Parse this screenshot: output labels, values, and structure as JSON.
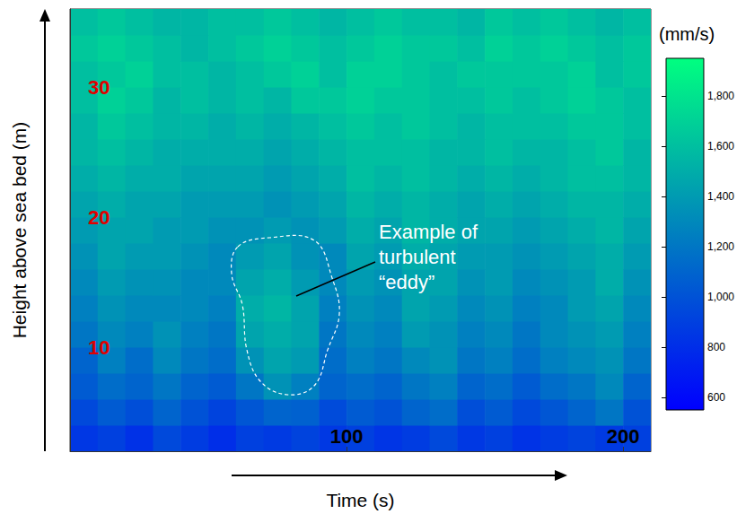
{
  "chart_data": {
    "type": "heatmap",
    "x_label": "Time (s)",
    "y_label": "Height above sea bed (m)",
    "xlim": [
      0,
      210
    ],
    "xticks": [
      100,
      200
    ],
    "ylim": [
      2,
      36
    ],
    "yticks": [
      10,
      20,
      30
    ],
    "x_bins": [
      0,
      10,
      20,
      30,
      40,
      50,
      60,
      70,
      80,
      90,
      100,
      110,
      120,
      130,
      140,
      150,
      160,
      170,
      180,
      190,
      200,
      210
    ],
    "y_bins": [
      2,
      4,
      6,
      8,
      10,
      12,
      14,
      16,
      18,
      20,
      22,
      24,
      26,
      28,
      30,
      32,
      34,
      36
    ],
    "cells": [
      [
        850,
        900,
        820,
        950,
        880,
        800,
        900,
        870,
        920,
        860,
        900,
        840,
        880,
        950,
        860,
        900,
        830,
        880,
        920,
        870,
        900
      ],
      [
        950,
        1050,
        980,
        1100,
        1000,
        920,
        1020,
        1100,
        1080,
        960,
        1050,
        1000,
        1100,
        1150,
        980,
        1050,
        950,
        1020,
        1100,
        1200,
        1000
      ],
      [
        1050,
        1150,
        1100,
        1200,
        1100,
        1050,
        1200,
        1350,
        1250,
        1100,
        1150,
        1100,
        1200,
        1250,
        1100,
        1150,
        1050,
        1150,
        1200,
        1300,
        1100
      ],
      [
        1100,
        1250,
        1150,
        1300,
        1200,
        1150,
        1350,
        1450,
        1400,
        1150,
        1250,
        1200,
        1300,
        1350,
        1200,
        1250,
        1150,
        1250,
        1300,
        1350,
        1200
      ],
      [
        1200,
        1300,
        1250,
        1350,
        1250,
        1200,
        1450,
        1500,
        1450,
        1200,
        1300,
        1250,
        1400,
        1350,
        1250,
        1300,
        1200,
        1300,
        1350,
        1400,
        1250
      ],
      [
        1250,
        1350,
        1300,
        1300,
        1300,
        1250,
        1500,
        1550,
        1450,
        1250,
        1350,
        1300,
        1450,
        1400,
        1300,
        1350,
        1250,
        1300,
        1400,
        1450,
        1300
      ],
      [
        1300,
        1400,
        1350,
        1350,
        1300,
        1300,
        1450,
        1500,
        1400,
        1300,
        1400,
        1350,
        1450,
        1450,
        1350,
        1400,
        1300,
        1350,
        1400,
        1500,
        1350
      ],
      [
        1350,
        1450,
        1400,
        1400,
        1350,
        1300,
        1400,
        1450,
        1350,
        1300,
        1450,
        1400,
        1500,
        1450,
        1400,
        1400,
        1350,
        1400,
        1450,
        1500,
        1400
      ],
      [
        1400,
        1450,
        1450,
        1400,
        1400,
        1350,
        1350,
        1400,
        1350,
        1400,
        1500,
        1450,
        1550,
        1500,
        1450,
        1450,
        1400,
        1450,
        1500,
        1550,
        1450
      ],
      [
        1450,
        1500,
        1450,
        1450,
        1400,
        1400,
        1400,
        1350,
        1400,
        1450,
        1550,
        1500,
        1550,
        1500,
        1450,
        1500,
        1450,
        1500,
        1550,
        1550,
        1500
      ],
      [
        1500,
        1550,
        1500,
        1500,
        1450,
        1450,
        1450,
        1400,
        1450,
        1500,
        1600,
        1550,
        1600,
        1550,
        1500,
        1550,
        1500,
        1550,
        1600,
        1600,
        1550
      ],
      [
        1550,
        1600,
        1550,
        1500,
        1500,
        1500,
        1500,
        1450,
        1500,
        1550,
        1600,
        1600,
        1600,
        1550,
        1550,
        1600,
        1550,
        1550,
        1600,
        1650,
        1550
      ],
      [
        1550,
        1650,
        1600,
        1550,
        1550,
        1500,
        1550,
        1500,
        1550,
        1600,
        1650,
        1600,
        1650,
        1600,
        1550,
        1600,
        1600,
        1600,
        1650,
        1650,
        1600
      ],
      [
        1600,
        1700,
        1650,
        1550,
        1600,
        1550,
        1600,
        1550,
        1650,
        1650,
        1700,
        1650,
        1650,
        1600,
        1600,
        1650,
        1600,
        1650,
        1700,
        1650,
        1600
      ],
      [
        1600,
        1650,
        1700,
        1600,
        1600,
        1550,
        1600,
        1650,
        1700,
        1600,
        1700,
        1700,
        1650,
        1600,
        1650,
        1650,
        1650,
        1650,
        1700,
        1600,
        1650
      ],
      [
        1650,
        1700,
        1650,
        1600,
        1550,
        1600,
        1650,
        1700,
        1650,
        1600,
        1650,
        1700,
        1650,
        1650,
        1600,
        1700,
        1650,
        1700,
        1650,
        1600,
        1650
      ],
      [
        1600,
        1650,
        1600,
        1550,
        1550,
        1600,
        1600,
        1650,
        1600,
        1550,
        1600,
        1650,
        1600,
        1600,
        1550,
        1650,
        1600,
        1650,
        1600,
        1550,
        1600
      ]
    ],
    "colorbar": {
      "label": "(mm/s)",
      "lim": [
        550,
        1950
      ],
      "ticks": [
        600,
        800,
        1000,
        1200,
        1400,
        1600,
        1800
      ],
      "colors": [
        "#0000ff",
        "#00ff80"
      ]
    },
    "annotations": [
      {
        "text": "Example of turbulent “eddy”"
      }
    ]
  }
}
